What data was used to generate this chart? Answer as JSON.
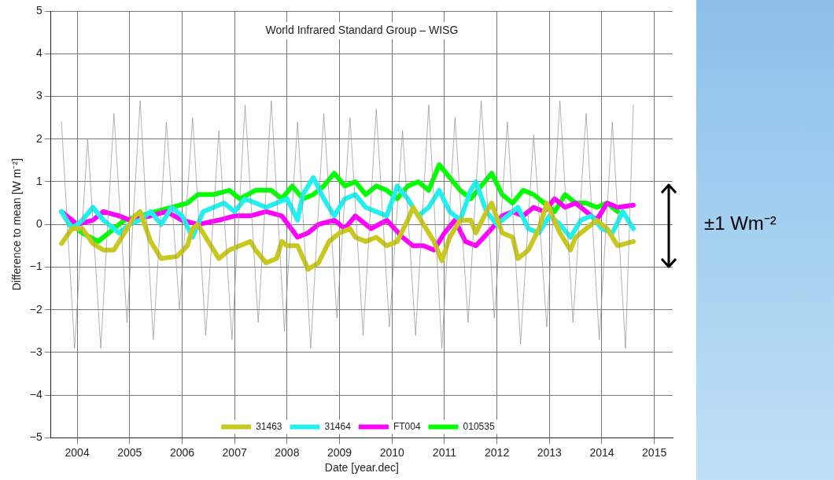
{
  "chart_data": {
    "type": "line",
    "title": "World Infrared Standard Group – WISG",
    "xlabel": "Date [year.dec]",
    "ylabel": "Difference to mean [W m⁻²]",
    "annotations": [
      "±1 Wm⁻²"
    ],
    "xlim": [
      2003.5,
      2015.35
    ],
    "xticks": [
      2004,
      2005,
      2006,
      2007,
      2008,
      2009,
      2010,
      2011,
      2012,
      2013,
      2014,
      2015
    ],
    "ylim": [
      -5,
      5
    ],
    "yticks": [
      -5,
      -4,
      -3,
      -2,
      -1,
      0,
      1,
      2,
      3,
      4,
      5
    ],
    "grid": true,
    "legend": "bottom",
    "marker": "none",
    "line_style": "solid",
    "series": [
      {
        "color": "#909090",
        "x": [
          2003.7,
          2003.95,
          2004.2,
          2004.45,
          2004.7,
          2004.95,
          2005.2,
          2005.45,
          2005.7,
          2005.95,
          2006.2,
          2006.45,
          2006.7,
          2006.95,
          2007.2,
          2007.45,
          2007.7,
          2007.95,
          2008.2,
          2008.45,
          2008.7,
          2008.95,
          2009.2,
          2009.45,
          2009.7,
          2009.95,
          2010.2,
          2010.45,
          2010.7,
          2010.95,
          2011.2,
          2011.45,
          2011.7,
          2011.95,
          2012.2,
          2012.45,
          2012.7,
          2012.95,
          2013.2,
          2013.45,
          2013.7,
          2013.95,
          2014.2,
          2014.45,
          2014.6
        ],
        "values": [
          2.4,
          -2.9,
          2.0,
          -2.9,
          2.6,
          -2.3,
          2.9,
          -2.7,
          2.4,
          -2.0,
          2.5,
          -2.6,
          2.2,
          -2.7,
          2.8,
          -2.3,
          2.9,
          -2.5,
          2.4,
          -2.9,
          2.6,
          -2.2,
          2.5,
          -2.6,
          2.7,
          -2.4,
          2.2,
          -2.6,
          2.8,
          -2.9,
          2.5,
          -2.3,
          2.9,
          -2.2,
          2.4,
          -2.8,
          2.1,
          -2.4,
          2.9,
          -2.3,
          2.6,
          -2.7,
          2.4,
          -2.9,
          2.8
        ]
      },
      {
        "name": "31463",
        "color": "#c8c81e",
        "x": [
          2003.7,
          2003.9,
          2004.1,
          2004.3,
          2004.5,
          2004.7,
          2004.9,
          2005.1,
          2005.2,
          2005.4,
          2005.6,
          2005.9,
          2006.1,
          2006.2,
          2006.3,
          2006.5,
          2006.7,
          2006.9,
          2007.1,
          2007.3,
          2007.4,
          2007.6,
          2007.8,
          2007.9,
          2008.0,
          2008.2,
          2008.4,
          2008.6,
          2008.8,
          2009.0,
          2009.2,
          2009.3,
          2009.5,
          2009.7,
          2009.9,
          2010.1,
          2010.3,
          2010.4,
          2010.6,
          2010.8,
          2010.95,
          2011.1,
          2011.3,
          2011.5,
          2011.6,
          2011.8,
          2011.9,
          2012.1,
          2012.3,
          2012.4,
          2012.6,
          2012.8,
          2012.95,
          2013.2,
          2013.4,
          2013.5,
          2013.7,
          2013.9,
          2014.1,
          2014.3,
          2014.6
        ],
        "values": [
          -0.45,
          -0.1,
          -0.1,
          -0.45,
          -0.6,
          -0.6,
          -0.2,
          0.2,
          0.3,
          -0.4,
          -0.8,
          -0.75,
          -0.5,
          -0.1,
          0.0,
          -0.4,
          -0.8,
          -0.6,
          -0.5,
          -0.4,
          -0.6,
          -0.9,
          -0.8,
          -0.4,
          -0.5,
          -0.5,
          -1.05,
          -0.9,
          -0.4,
          -0.2,
          -0.1,
          -0.3,
          -0.4,
          -0.3,
          -0.5,
          -0.4,
          0.1,
          0.4,
          0.0,
          -0.4,
          -0.85,
          -0.3,
          0.1,
          0.1,
          -0.2,
          0.3,
          0.5,
          -0.2,
          -0.3,
          -0.8,
          -0.6,
          -0.1,
          0.5,
          -0.2,
          -0.6,
          -0.3,
          -0.1,
          0.1,
          -0.1,
          -0.5,
          -0.4
        ]
      },
      {
        "name": "31464",
        "color": "#22f0f0",
        "x": [
          2003.7,
          2003.9,
          2004.1,
          2004.3,
          2004.5,
          2004.8,
          2005.0,
          2005.2,
          2005.4,
          2005.6,
          2005.8,
          2006.0,
          2006.2,
          2006.4,
          2006.6,
          2006.8,
          2007.0,
          2007.2,
          2007.4,
          2007.6,
          2007.8,
          2008.0,
          2008.2,
          2008.3,
          2008.5,
          2008.7,
          2008.9,
          2009.1,
          2009.3,
          2009.5,
          2009.7,
          2009.9,
          2010.1,
          2010.3,
          2010.5,
          2010.7,
          2010.9,
          2011.1,
          2011.3,
          2011.5,
          2011.6,
          2011.8,
          2012.0,
          2012.2,
          2012.4,
          2012.6,
          2012.8,
          2013.0,
          2013.2,
          2013.4,
          2013.6,
          2013.8,
          2014.0,
          2014.2,
          2014.4,
          2014.6
        ],
        "values": [
          0.3,
          -0.1,
          0.1,
          0.4,
          0.1,
          -0.2,
          0.0,
          0.1,
          0.3,
          0.0,
          0.4,
          0.2,
          -0.3,
          0.3,
          0.4,
          0.5,
          0.3,
          0.6,
          0.5,
          0.4,
          0.5,
          0.6,
          0.1,
          0.7,
          1.1,
          0.6,
          0.2,
          0.6,
          0.7,
          0.4,
          0.3,
          0.2,
          0.9,
          0.6,
          0.2,
          0.4,
          0.8,
          0.3,
          0.1,
          0.8,
          1.0,
          0.3,
          0.0,
          0.2,
          0.4,
          -0.1,
          -0.2,
          0.2,
          0.0,
          -0.3,
          0.1,
          0.2,
          -0.1,
          -0.2,
          0.3,
          -0.1
        ]
      },
      {
        "name": "FT004",
        "color": "#ff00ff",
        "x": [
          2003.7,
          2004.0,
          2004.3,
          2004.5,
          2004.8,
          2005.0,
          2005.4,
          2005.7,
          2006.0,
          2006.3,
          2006.7,
          2007.0,
          2007.3,
          2007.6,
          2007.9,
          2008.2,
          2008.4,
          2008.6,
          2008.9,
          2009.1,
          2009.3,
          2009.6,
          2009.9,
          2010.2,
          2010.4,
          2010.6,
          2010.8,
          2011.0,
          2011.2,
          2011.4,
          2011.6,
          2011.9,
          2012.1,
          2012.3,
          2012.5,
          2012.7,
          2012.9,
          2013.1,
          2013.3,
          2013.5,
          2013.7,
          2013.9,
          2014.1,
          2014.3,
          2014.6
        ],
        "values": [
          0.3,
          0.0,
          0.1,
          0.3,
          0.2,
          0.1,
          0.2,
          0.3,
          0.1,
          0.0,
          0.1,
          0.2,
          0.2,
          0.3,
          0.2,
          -0.3,
          -0.2,
          0.0,
          0.1,
          -0.1,
          0.2,
          -0.1,
          0.1,
          -0.3,
          -0.5,
          -0.5,
          -0.6,
          -0.2,
          0.1,
          -0.4,
          -0.5,
          -0.1,
          0.2,
          0.3,
          0.2,
          0.4,
          0.3,
          0.6,
          0.4,
          0.5,
          0.3,
          0.1,
          0.5,
          0.4,
          0.45
        ]
      },
      {
        "name": "010535",
        "color": "#00ff00",
        "x": [
          2003.9,
          2004.1,
          2004.4,
          2004.6,
          2004.9,
          2005.2,
          2005.5,
          2005.8,
          2006.1,
          2006.3,
          2006.6,
          2006.9,
          2007.1,
          2007.4,
          2007.7,
          2007.9,
          2008.1,
          2008.3,
          2008.5,
          2008.7,
          2008.9,
          2009.1,
          2009.3,
          2009.5,
          2009.7,
          2009.9,
          2010.1,
          2010.3,
          2010.5,
          2010.7,
          2010.9,
          2011.1,
          2011.3,
          2011.5,
          2011.7,
          2011.9,
          2012.1,
          2012.3,
          2012.5,
          2012.7,
          2012.9,
          2013.1,
          2013.3,
          2013.5,
          2013.7,
          2013.9,
          2014.1,
          2014.3
        ],
        "values": [
          0.0,
          -0.2,
          -0.4,
          -0.2,
          0.1,
          0.2,
          0.3,
          0.4,
          0.5,
          0.7,
          0.7,
          0.8,
          0.6,
          0.8,
          0.8,
          0.6,
          0.9,
          0.6,
          0.7,
          0.9,
          1.2,
          0.9,
          1.0,
          0.7,
          0.9,
          0.8,
          0.6,
          0.9,
          1.0,
          0.8,
          1.4,
          1.1,
          0.8,
          0.6,
          0.9,
          1.2,
          0.7,
          0.5,
          0.8,
          0.7,
          0.5,
          0.3,
          0.7,
          0.5,
          0.5,
          0.4,
          0.5,
          0.3
        ]
      }
    ]
  }
}
